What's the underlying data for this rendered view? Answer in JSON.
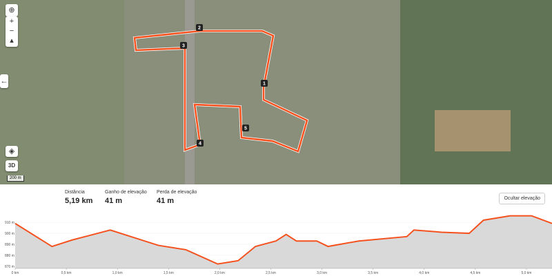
{
  "map": {
    "scale": "200 m",
    "view_3d": "3D",
    "waypoints": [
      "1",
      "2",
      "3",
      "4",
      "5"
    ]
  },
  "stats": [
    {
      "label": "Distância",
      "value": "5,19 km"
    },
    {
      "label": "Ganho de elevação",
      "value": "41 m"
    },
    {
      "label": "Perda de elevação",
      "value": "41 m"
    }
  ],
  "toggle": "Ocultar elevação",
  "chart_data": {
    "type": "area",
    "color": "#f4511e",
    "x": [
      0,
      0.36,
      0.56,
      0.93,
      1.4,
      1.67,
      1.98,
      2.18,
      2.35,
      2.55,
      2.65,
      2.75,
      2.95,
      3.06,
      3.36,
      3.83,
      3.9,
      4.17,
      4.44,
      4.58,
      4.84,
      5.05,
      5.25
    ],
    "values": [
      909,
      888,
      894,
      903,
      889,
      885,
      872,
      875,
      888,
      893,
      899,
      893,
      893,
      888,
      893,
      897,
      903,
      901,
      900,
      912,
      916,
      916,
      909
    ],
    "xlim": [
      0,
      5.25
    ],
    "ylim": [
      868,
      917
    ],
    "xticks": [
      {
        "value": 0,
        "label": "0 km"
      },
      {
        "value": 0.5,
        "label": "0,5 km"
      },
      {
        "value": 1,
        "label": "1,0 km"
      },
      {
        "value": 1.5,
        "label": "1,5 km"
      },
      {
        "value": 2,
        "label": "2,0 km"
      },
      {
        "value": 2.5,
        "label": "2,5 km"
      },
      {
        "value": 3,
        "label": "3,0 km"
      },
      {
        "value": 3.5,
        "label": "3,5 km"
      },
      {
        "value": 4,
        "label": "4,0 km"
      },
      {
        "value": 4.5,
        "label": "4,5 km"
      },
      {
        "value": 5,
        "label": "5,0 km"
      }
    ],
    "yticks": [
      {
        "value": 910,
        "label": "910 m"
      },
      {
        "value": 900,
        "label": "900 m"
      },
      {
        "value": 890,
        "label": "890 m"
      },
      {
        "value": 880,
        "label": "880 m"
      },
      {
        "value": 870,
        "label": "870 m"
      }
    ]
  }
}
